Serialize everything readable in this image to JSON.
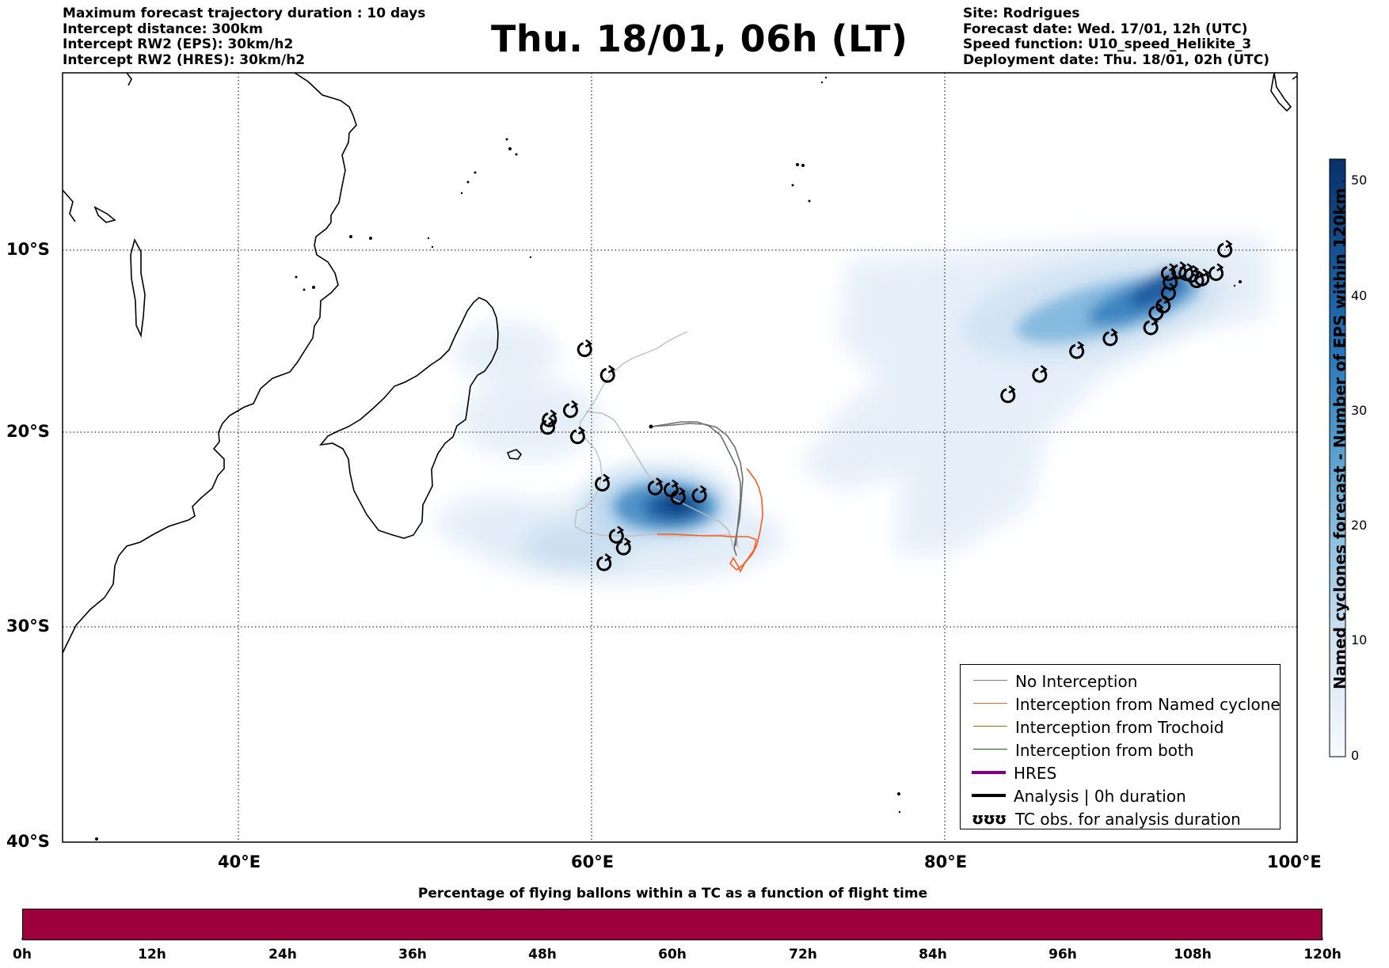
{
  "header_left": [
    "Maximum forecast trajectory duration : 10 days",
    "Intercept distance: 300km",
    "Intercept RW2 (EPS):  30km/h2",
    "Intercept RW2 (HRES): 30km/h2"
  ],
  "header_right": [
    "Site: Rodrigues",
    "Forecast date: Wed. 17/01, 12h (UTC)",
    "Speed function: U10_speed_Helikite_3",
    "Deployment date: Thu. 18/01, 02h (UTC)"
  ],
  "title": "Thu. 18/01, 06h (LT)",
  "map": {
    "lon_ticks": [
      "40°E",
      "60°E",
      "80°E",
      "100°E"
    ],
    "lat_ticks": [
      "10°S",
      "20°S",
      "30°S",
      "40°S"
    ],
    "lon_range": [
      30,
      100
    ],
    "lat_range": [
      -40,
      -1
    ],
    "grid": "dotted",
    "colors": {
      "land_outline": "#000000",
      "no_interception": "#808080",
      "interception_named_cyclone": "#ff5a1e",
      "interception_trochoid": "#808000",
      "interception_both": "#008000",
      "hres": "#800080",
      "analysis": "#000000",
      "density_low": "#e8f0fa",
      "density_high": "#08306b"
    },
    "tc_obs_west": [
      [
        59.6,
        -15.5
      ],
      [
        60.9,
        -16.9
      ],
      [
        57.6,
        -19.3
      ],
      [
        57.5,
        -19.7
      ],
      [
        58.8,
        -18.8
      ],
      [
        59.2,
        -20.2
      ],
      [
        60.6,
        -22.7
      ],
      [
        63.6,
        -22.9
      ],
      [
        64.5,
        -23.0
      ],
      [
        64.9,
        -23.4
      ],
      [
        66.1,
        -23.3
      ],
      [
        61.4,
        -25.4
      ],
      [
        61.8,
        -26.0
      ],
      [
        60.7,
        -26.8
      ]
    ],
    "tc_obs_east": [
      [
        83.6,
        -18.0
      ],
      [
        85.4,
        -16.9
      ],
      [
        87.5,
        -15.6
      ],
      [
        89.4,
        -14.9
      ],
      [
        91.7,
        -14.3
      ],
      [
        92.0,
        -13.5
      ],
      [
        92.4,
        -13.1
      ],
      [
        92.7,
        -12.4
      ],
      [
        92.8,
        -11.8
      ],
      [
        92.7,
        -11.3
      ],
      [
        93.3,
        -11.2
      ],
      [
        93.7,
        -11.3
      ],
      [
        94.0,
        -11.4
      ],
      [
        94.3,
        -11.7
      ],
      [
        94.6,
        -11.6
      ],
      [
        95.4,
        -11.3
      ],
      [
        95.9,
        -10.0
      ]
    ],
    "named_cyclone_density": [
      {
        "lon": 64.9,
        "lat": -23.1,
        "count": 52
      },
      {
        "lon": 61.0,
        "lat": -24.6,
        "count": 18
      },
      {
        "lon": 93.9,
        "lat": -11.2,
        "count": 50
      },
      {
        "lon": 88.0,
        "lat": -12.4,
        "count": 22
      },
      {
        "lon": 83.0,
        "lat": -17.5,
        "count": 6
      }
    ]
  },
  "legend": {
    "items": [
      {
        "label": "No Interception"
      },
      {
        "label": "Interception from Named cyclone"
      },
      {
        "label": "Interception from Trochoid"
      },
      {
        "label": "Interception from both"
      },
      {
        "label": "HRES"
      },
      {
        "label": "Analysis | 0h duration"
      },
      {
        "label": "TC obs. for analysis duration",
        "icon": "ʊʊʊ"
      }
    ]
  },
  "colorbar": {
    "label": "Named cyclones forecast - Number of EPS within 120km",
    "ticks": [
      "0",
      "10",
      "20",
      "30",
      "40",
      "50"
    ],
    "range": [
      0,
      52
    ]
  },
  "bottom": {
    "title": "Percentage of flying ballons within a TC as a function of flight time",
    "ticks": [
      "0h",
      "12h",
      "24h",
      "36h",
      "48h",
      "60h",
      "72h",
      "84h",
      "96h",
      "108h",
      "120h"
    ],
    "bar_value_percent": 0,
    "bar_color": "#9d003d"
  }
}
